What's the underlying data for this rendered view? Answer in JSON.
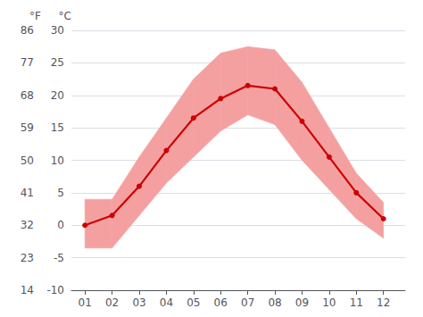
{
  "chart_data": {
    "type": "line",
    "x": [
      1,
      2,
      3,
      4,
      5,
      6,
      7,
      8,
      9,
      10,
      11,
      12
    ],
    "xlim": [
      0.5,
      12.8
    ],
    "xticks": [
      {
        "value": 1,
        "label": "01"
      },
      {
        "value": 2,
        "label": "02"
      },
      {
        "value": 3,
        "label": "03"
      },
      {
        "value": 4,
        "label": "04"
      },
      {
        "value": 5,
        "label": "05"
      },
      {
        "value": 6,
        "label": "06"
      },
      {
        "value": 7,
        "label": "07"
      },
      {
        "value": 8,
        "label": "08"
      },
      {
        "value": 9,
        "label": "09"
      },
      {
        "value": 10,
        "label": "10"
      },
      {
        "value": 11,
        "label": "11"
      },
      {
        "value": 12,
        "label": "12"
      }
    ],
    "ylabel": "°C",
    "ylim": [
      -10,
      30
    ],
    "yticks": [
      -10,
      -5,
      0,
      5,
      10,
      15,
      20,
      25,
      30
    ],
    "y2label": "°F",
    "y2lim": [
      14,
      86
    ],
    "y2ticks": [
      14,
      23,
      32,
      41,
      50,
      59,
      68,
      77,
      86
    ],
    "grid": true,
    "series": [
      {
        "type": "band",
        "color": "#f5a0a0",
        "low": [
          -3.5,
          -3.5,
          1.5,
          6.5,
          10.5,
          14.5,
          17.0,
          15.5,
          10.0,
          5.5,
          1.0,
          -2.0
        ],
        "high": [
          4.0,
          4.0,
          10.5,
          16.5,
          22.5,
          26.5,
          27.5,
          27.0,
          22.0,
          15.0,
          8.0,
          3.5
        ]
      },
      {
        "type": "line",
        "color": "#cc0000",
        "marker": "circle",
        "values": [
          0.0,
          1.5,
          6.0,
          11.5,
          16.5,
          19.5,
          21.5,
          21.0,
          16.0,
          10.5,
          5.0,
          1.0
        ]
      }
    ]
  }
}
